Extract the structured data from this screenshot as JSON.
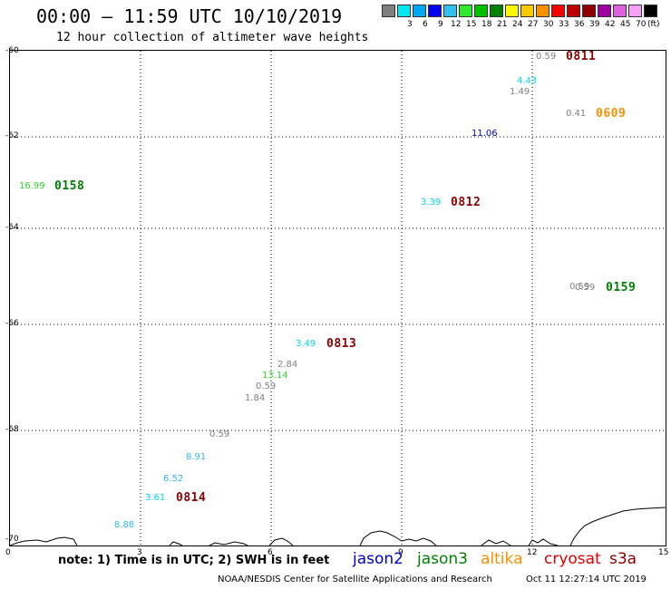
{
  "title": "00:00 – 11:59 UTC 10/10/2019",
  "subtitle": "12 hour collection of altimeter wave heights",
  "legend": {
    "unit": "(ft)",
    "bins": [
      {
        "label": "",
        "color": "#808080"
      },
      {
        "label": "3",
        "color": "#00e8f0"
      },
      {
        "label": "6",
        "color": "#00a8f8"
      },
      {
        "label": "9",
        "color": "#0000f0"
      },
      {
        "label": "12",
        "color": "#30c0f0"
      },
      {
        "label": "15",
        "color": "#30e830"
      },
      {
        "label": "18",
        "color": "#00c000"
      },
      {
        "label": "21",
        "color": "#008000"
      },
      {
        "label": "24",
        "color": "#f8f800"
      },
      {
        "label": "27",
        "color": "#f8c800"
      },
      {
        "label": "30",
        "color": "#f89000"
      },
      {
        "label": "33",
        "color": "#f80000"
      },
      {
        "label": "36",
        "color": "#c00000"
      },
      {
        "label": "39",
        "color": "#900000"
      },
      {
        "label": "42",
        "color": "#a000a0"
      },
      {
        "label": "45",
        "color": "#e060e0"
      },
      {
        "label": "70",
        "color": "#f8a0f8"
      },
      {
        "label": "",
        "color": "#000000"
      }
    ]
  },
  "axes": {
    "y_labels": [
      "-60",
      "-62",
      "-64",
      "-66",
      "-68",
      "-70"
    ],
    "x_labels": [
      "0",
      "3",
      "6",
      "9",
      "12",
      "15"
    ]
  },
  "wave_heights": [
    {
      "value": "0.59",
      "color": "#808080"
    },
    {
      "value": "4.43",
      "color": "#00d8e8"
    },
    {
      "value": "1.49",
      "color": "#808080"
    },
    {
      "value": "0.41",
      "color": "#808080"
    },
    {
      "value": "11.06",
      "color": "#0000c0"
    },
    {
      "value": "16.99",
      "color": "#30d030"
    },
    {
      "value": "3.39",
      "color": "#00d8e8"
    },
    {
      "value": "0.59",
      "color": "#808080"
    },
    {
      "value": "0.59",
      "color": "#808080"
    },
    {
      "value": "3.49",
      "color": "#00d8e8"
    },
    {
      "value": "2.84",
      "color": "#808080"
    },
    {
      "value": "13.14",
      "color": "#30d030"
    },
    {
      "value": "0.59",
      "color": "#808080"
    },
    {
      "value": "1.84",
      "color": "#808080"
    },
    {
      "value": "0.59",
      "color": "#808080"
    },
    {
      "value": "8.91",
      "color": "#30b8f0"
    },
    {
      "value": "6.52",
      "color": "#30b8f0"
    },
    {
      "value": "3.61",
      "color": "#00d8e8"
    },
    {
      "value": "8.88",
      "color": "#30b8f0"
    }
  ],
  "pass_times": [
    {
      "time": "0811",
      "color": "#8b0000"
    },
    {
      "time": "0609",
      "color": "#f89000"
    },
    {
      "time": "0158",
      "color": "#008000"
    },
    {
      "time": "0812",
      "color": "#8b0000"
    },
    {
      "time": "0159",
      "color": "#008000"
    },
    {
      "time": "0813",
      "color": "#8b0000"
    },
    {
      "time": "0814",
      "color": "#8b0000"
    }
  ],
  "note": "note: 1) Time is in UTC; 2) SWH is in feet",
  "satellites": [
    {
      "name": "jason2",
      "color": "#0000d0"
    },
    {
      "name": "jason3",
      "color": "#008000"
    },
    {
      "name": "altika",
      "color": "#f89000"
    },
    {
      "name": "cryosat",
      "color": "#e00000"
    },
    {
      "name": "s3a",
      "color": "#8b0000"
    }
  ],
  "credit": "NOAA/NESDIS Center for Satellite Applications and Research",
  "generated": "Oct 11 12:27:14 UTC 2019"
}
